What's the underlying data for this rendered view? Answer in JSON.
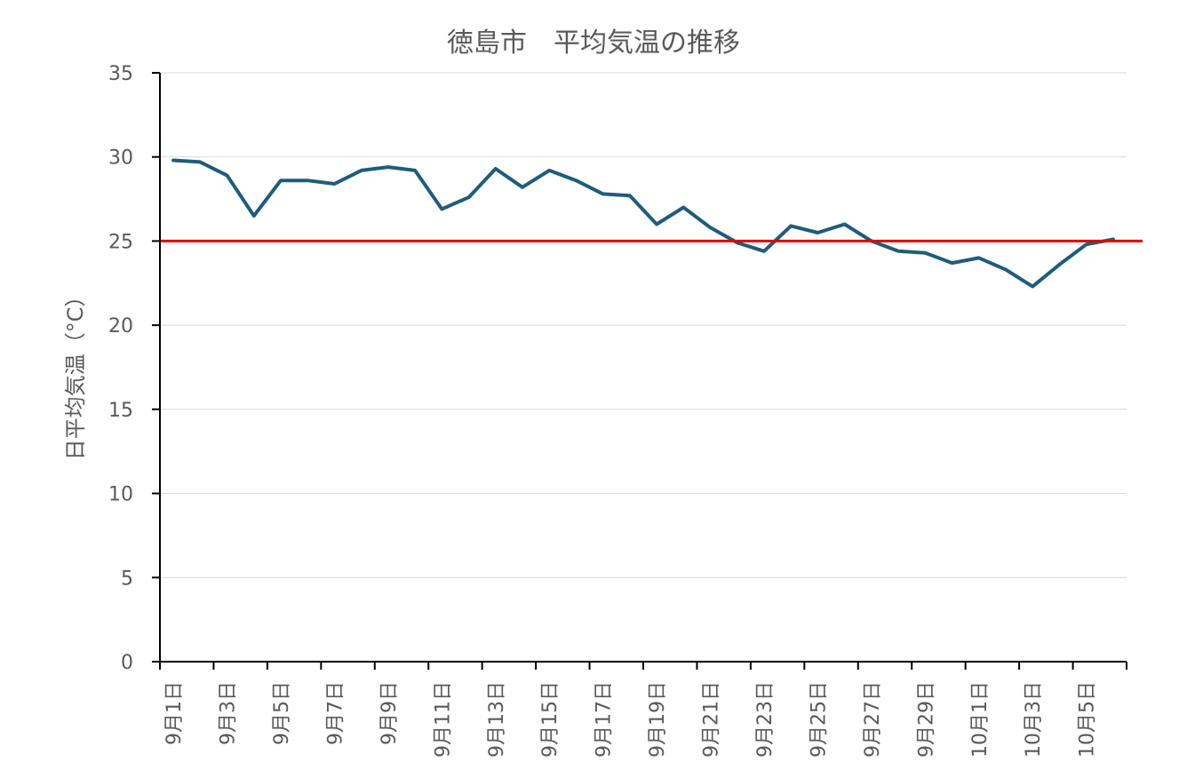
{
  "chart_data": {
    "type": "line",
    "title": "徳島市　平均気温の推移",
    "xlabel": "",
    "ylabel": "日平均気温（°C）",
    "ylim": [
      0,
      35
    ],
    "yticks": [
      0,
      5,
      10,
      15,
      20,
      25,
      30,
      35
    ],
    "grid": true,
    "x": [
      "9月1日",
      "9月2日",
      "9月3日",
      "9月4日",
      "9月5日",
      "9月6日",
      "9月7日",
      "9月8日",
      "9月9日",
      "9月10日",
      "9月11日",
      "9月12日",
      "9月13日",
      "9月14日",
      "9月15日",
      "9月16日",
      "9月17日",
      "9月18日",
      "9月19日",
      "9月20日",
      "9月21日",
      "9月22日",
      "9月23日",
      "9月24日",
      "9月25日",
      "9月26日",
      "9月27日",
      "9月28日",
      "9月29日",
      "9月30日",
      "10月1日",
      "10月2日",
      "10月3日",
      "10月4日",
      "10月5日",
      "10月6日"
    ],
    "xtick_labels": [
      "9月1日",
      "9月3日",
      "9月5日",
      "9月7日",
      "9月9日",
      "9月11日",
      "9月13日",
      "9月15日",
      "9月17日",
      "9月19日",
      "9月21日",
      "9月23日",
      "9月25日",
      "9月27日",
      "9月29日",
      "10月1日",
      "10月3日",
      "10月5日"
    ],
    "series": [
      {
        "color": "#1f5c7a",
        "values": [
          29.8,
          29.7,
          28.9,
          26.5,
          28.6,
          28.6,
          28.4,
          29.2,
          29.4,
          29.2,
          26.9,
          27.6,
          29.3,
          28.2,
          29.2,
          28.6,
          27.8,
          27.7,
          26.0,
          27.0,
          25.8,
          24.9,
          24.4,
          25.9,
          25.5,
          26.0,
          25.0,
          24.4,
          24.3,
          23.7,
          24.0,
          23.3,
          22.3,
          23.6,
          24.8,
          25.1
        ]
      }
    ],
    "reference_line": {
      "value": 25,
      "color": "#e00000"
    }
  }
}
